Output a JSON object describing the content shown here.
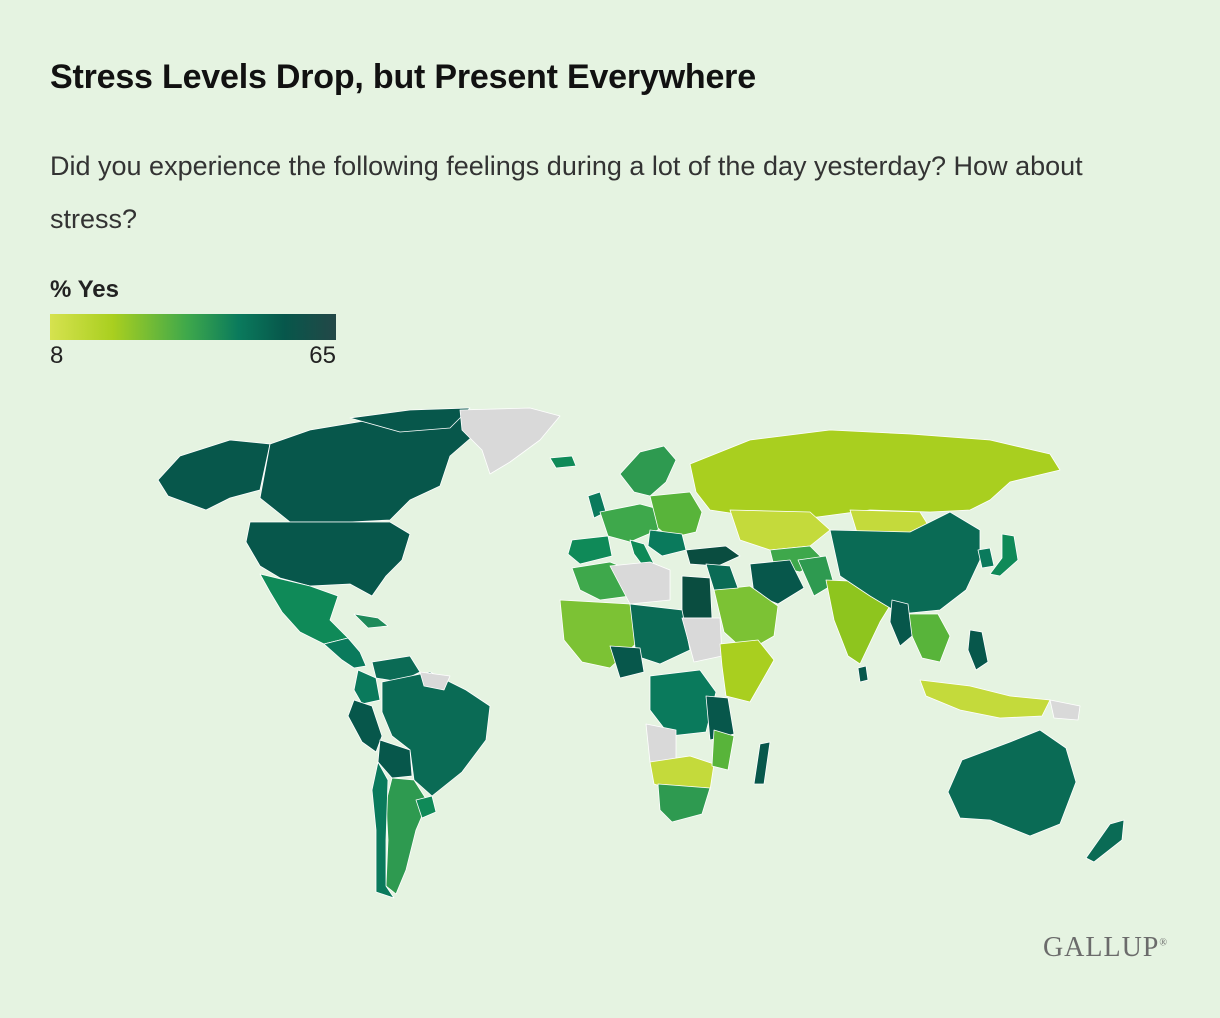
{
  "header": {
    "title": "Stress Levels Drop, but Present Everywhere",
    "subtitle": "Did you experience the following feelings during a lot of the day yesterday? How about stress?"
  },
  "legend": {
    "title": "% Yes",
    "min_label": "8",
    "max_label": "65",
    "min_value": 8,
    "max_value": 65,
    "gradient_colors": [
      "#d6e24f",
      "#a9cf1f",
      "#3ea84b",
      "#0a7a5c",
      "#07574b",
      "#234747"
    ]
  },
  "colors": {
    "background": "#e5f3e1",
    "no_data": "#d9d9d9",
    "border": "#ffffff"
  },
  "footer": {
    "brand": "GALLUP"
  }
}
